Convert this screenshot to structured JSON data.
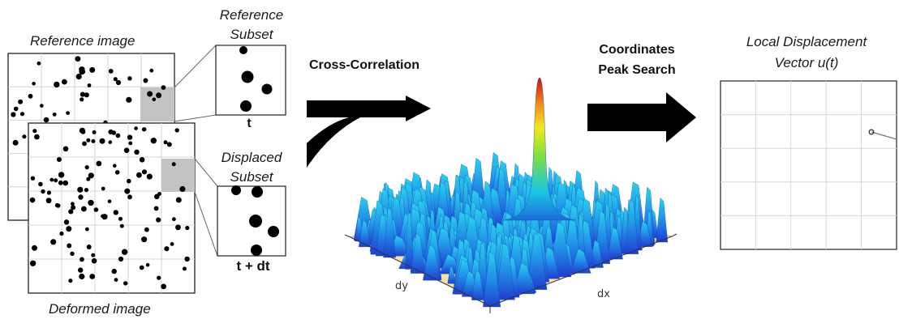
{
  "reference_image": {
    "label": "Reference image"
  },
  "deformed_image": {
    "label": "Deformed image"
  },
  "reference_subset": {
    "title_line1": "Reference",
    "title_line2": "Subset",
    "time_label": "t"
  },
  "displaced_subset": {
    "title_line1": "Displaced",
    "title_line2": "Subset",
    "time_label": "t + dt"
  },
  "cross_correlation": {
    "label": "Cross-Correlation"
  },
  "peak_search": {
    "line1": "Coordinates",
    "line2": "Peak Search"
  },
  "surface_plot": {
    "x_axis_label": "dx",
    "y_axis_label": "dy"
  },
  "displacement": {
    "line1": "Local Displacement",
    "line2": "Vector u(t)"
  },
  "colors": {
    "arrow": "#000000",
    "subset_highlight": "#c3c3c3",
    "surface_floor": "#f6e3a5",
    "peak_top": "#cc1010",
    "surface_base": "#1a6bd8"
  }
}
